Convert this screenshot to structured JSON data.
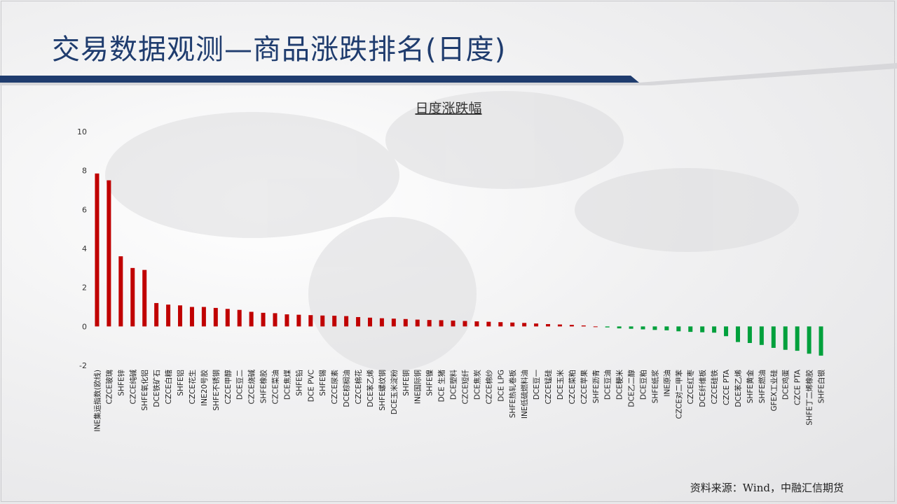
{
  "page": {
    "title": "交易数据观测—商品涨跌排名(日度)",
    "source": "资料来源：Wind，中融汇信期货"
  },
  "colors": {
    "up": "#c00000",
    "down": "#00a03c",
    "title": "#1f3c6e",
    "band": "#1f3c6e"
  },
  "chart_data": {
    "type": "bar",
    "title": "日度涨跌幅",
    "xlabel": "",
    "ylabel": "",
    "ylim": [
      -2,
      10
    ],
    "yticks": [
      -2,
      0,
      2,
      4,
      6,
      8,
      10
    ],
    "grid": false,
    "categories": [
      "INE集运指数(欧线)",
      "CZCE玻璃",
      "SHFE锌",
      "CZCE纯碱",
      "SHFE氧化铝",
      "DCE铁矿石",
      "CZCE白糖",
      "SHFE铝",
      "CZCE花生",
      "INE20号胶",
      "SHFE不锈钢",
      "CZCE甲醇",
      "DCE豆二",
      "CZCE烧碱",
      "SHFE橡胶",
      "CZCE菜油",
      "DCE焦煤",
      "SHFE铅",
      "DCE PVC",
      "SHFE锡",
      "CZCE尿素",
      "DCE棕榈油",
      "CZCE棉花",
      "DCE苯乙烯",
      "SHFE螺纹钢",
      "DCE玉米淀粉",
      "SHFE铜",
      "INE国际铜",
      "SHFE镍",
      "DCE 生猪",
      "DCE塑料",
      "CZCE短纤",
      "DCE焦炭",
      "CZCE棉纱",
      "DCE LPG",
      "SHFE热轧卷板",
      "INE低硫燃料油",
      "DCE豆一",
      "CZCE锰硅",
      "DCE玉米",
      "CZCE菜粕",
      "CZCE苹果",
      "SHFE沥青",
      "DCE豆油",
      "DCE粳米",
      "DCE乙二醇",
      "DCE豆粕",
      "SHFE纸浆",
      "INE原油",
      "CZCE对二甲苯",
      "CZCE红枣",
      "DCE纤维板",
      "CZCE硅铁",
      "CZCE PTA",
      "DCE苯乙烯",
      "SHFE黄金",
      "SHFE燃油",
      "GFEX工业硅",
      "DCE鸡蛋",
      "CZCE PTA",
      "SHFE丁二烯橡胶",
      "SHFE白银"
    ],
    "values": [
      7.85,
      7.5,
      3.6,
      3.0,
      2.9,
      1.2,
      1.12,
      1.08,
      1.0,
      1.0,
      0.95,
      0.9,
      0.85,
      0.75,
      0.7,
      0.68,
      0.62,
      0.6,
      0.58,
      0.56,
      0.55,
      0.53,
      0.48,
      0.45,
      0.42,
      0.4,
      0.38,
      0.35,
      0.33,
      0.32,
      0.3,
      0.28,
      0.26,
      0.24,
      0.22,
      0.2,
      0.18,
      0.15,
      0.12,
      0.1,
      0.08,
      0.05,
      0.0,
      -0.05,
      -0.1,
      -0.12,
      -0.15,
      -0.18,
      -0.2,
      -0.25,
      -0.28,
      -0.3,
      -0.32,
      -0.5,
      -0.8,
      -0.85,
      -0.95,
      -1.1,
      -1.2,
      -1.25,
      -1.4,
      -1.5
    ]
  }
}
